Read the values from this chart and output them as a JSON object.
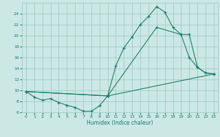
{
  "bg_color": "#cce8e4",
  "grid_color": "#9eccc6",
  "line_color": "#1a7a6e",
  "marker": "+",
  "xlabel": "Humidex (Indice chaleur)",
  "ylim": [
    6,
    26
  ],
  "xlim": [
    -0.5,
    23.5
  ],
  "yticks": [
    6,
    8,
    10,
    12,
    14,
    16,
    18,
    20,
    22,
    24
  ],
  "xticks": [
    0,
    1,
    2,
    3,
    4,
    5,
    6,
    7,
    8,
    9,
    10,
    11,
    12,
    13,
    14,
    15,
    16,
    17,
    18,
    19,
    20,
    21,
    22,
    23
  ],
  "xtick_labels": [
    "0",
    "1",
    "2",
    "3",
    "4",
    "5",
    "6",
    "7",
    "8",
    "9",
    "10",
    "11",
    "12",
    "13",
    "14",
    "15",
    "16",
    "17",
    "18",
    "19",
    "20",
    "21",
    "22",
    "23"
  ],
  "line1_x": [
    0,
    1,
    2,
    3,
    4,
    5,
    6,
    7,
    8,
    9,
    10,
    11,
    12,
    13,
    14,
    15,
    16,
    17,
    18,
    19,
    20,
    21,
    22,
    23
  ],
  "line1_y": [
    9.8,
    8.8,
    8.2,
    8.5,
    7.8,
    7.3,
    6.9,
    6.2,
    6.2,
    7.2,
    9.0,
    14.5,
    17.8,
    19.8,
    22.0,
    23.5,
    25.3,
    24.3,
    21.5,
    20.2,
    16.0,
    14.2,
    13.2,
    13.0
  ],
  "line2_x": [
    0,
    10,
    16,
    19,
    20,
    21,
    22,
    23
  ],
  "line2_y": [
    9.8,
    9.0,
    21.5,
    20.2,
    20.2,
    14.2,
    13.2,
    13.0
  ],
  "line3_x": [
    0,
    10,
    23
  ],
  "line3_y": [
    9.8,
    9.0,
    13.0
  ]
}
